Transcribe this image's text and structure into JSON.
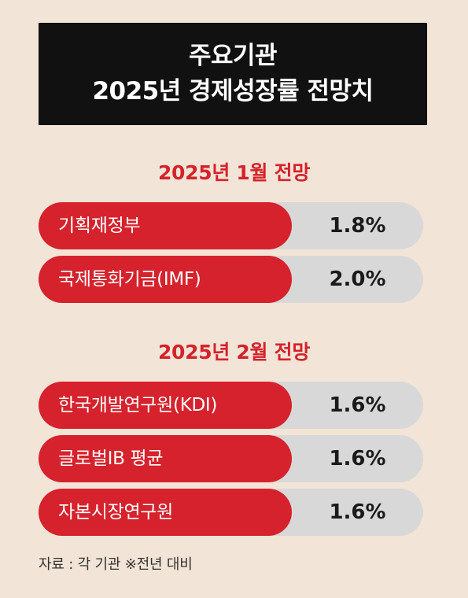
{
  "title": {
    "line1": "주요기관",
    "line2": "2025년 경제성장률 전망치"
  },
  "sections": [
    {
      "heading": "2025년 1월 전망",
      "rows": [
        {
          "label": "기획재정부",
          "value": "1.8%"
        },
        {
          "label": "국제통화기금(IMF)",
          "value": "2.0%"
        }
      ]
    },
    {
      "heading": "2025년 2월 전망",
      "rows": [
        {
          "label": "한국개발연구원(KDI)",
          "value": "1.6%"
        },
        {
          "label": "글로벌IB 평균",
          "value": "1.6%"
        },
        {
          "label": "자본시장연구원",
          "value": "1.6%"
        }
      ]
    }
  ],
  "source": "자료 : 각 기관 ※전년 대비",
  "colors": {
    "background": "#f2e4d6",
    "title_bg": "#111111",
    "accent": "#d5222c",
    "value_bg": "#d9d8d8"
  }
}
